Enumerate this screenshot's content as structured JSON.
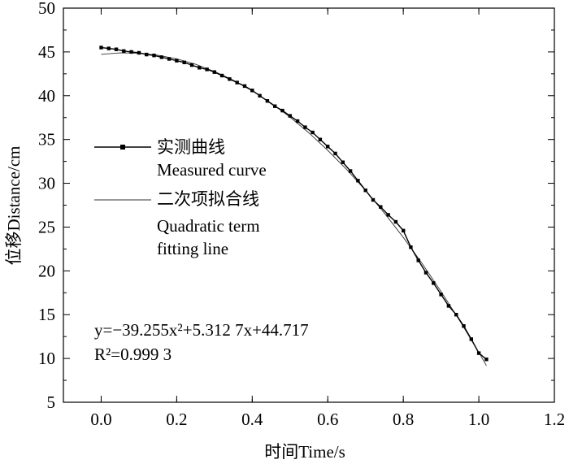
{
  "chart_data": {
    "type": "line",
    "xlabel": "时间Time/s",
    "ylabel": "位移Distance/cm",
    "xlim": [
      -0.1,
      1.2
    ],
    "ylim": [
      5,
      50
    ],
    "xticks": [
      0.0,
      0.2,
      0.4,
      0.6,
      0.8,
      1.0,
      1.2
    ],
    "xtick_labels": [
      "0.0",
      "0.2",
      "0.4",
      "0.6",
      "0.8",
      "1.0",
      "1.2"
    ],
    "yticks": [
      5,
      10,
      15,
      20,
      25,
      30,
      35,
      40,
      45,
      50
    ],
    "ytick_labels": [
      "5",
      "10",
      "15",
      "20",
      "25",
      "30",
      "35",
      "40",
      "45",
      "50"
    ],
    "grid": false,
    "legend_position": "middle-left",
    "legend": {
      "measured_cn": "实测曲线",
      "measured_en": "Measured curve",
      "fit_cn": "二次项拟合线",
      "fit_en_line1": "Quadratic term",
      "fit_en_line2": "fitting line"
    },
    "annotation": {
      "equation_line1": "y=−39.255x²+5.312 7x+44.717",
      "equation_line2": "R²=0.999 3"
    },
    "series": [
      {
        "name": "实测曲线 Measured curve",
        "style": "line-with-square-markers",
        "x": [
          0.0,
          0.02,
          0.04,
          0.06,
          0.08,
          0.1,
          0.12,
          0.14,
          0.16,
          0.18,
          0.2,
          0.22,
          0.24,
          0.26,
          0.28,
          0.3,
          0.32,
          0.34,
          0.36,
          0.38,
          0.4,
          0.42,
          0.44,
          0.46,
          0.48,
          0.5,
          0.52,
          0.54,
          0.56,
          0.58,
          0.6,
          0.62,
          0.64,
          0.66,
          0.68,
          0.7,
          0.72,
          0.74,
          0.76,
          0.78,
          0.8,
          0.82,
          0.84,
          0.86,
          0.88,
          0.9,
          0.92,
          0.94,
          0.96,
          0.98,
          1.0,
          1.02
        ],
        "y": [
          45.5,
          45.4,
          45.3,
          45.1,
          45.0,
          44.9,
          44.7,
          44.6,
          44.4,
          44.2,
          44.0,
          43.8,
          43.5,
          43.2,
          43.0,
          42.7,
          42.3,
          41.9,
          41.5,
          41.1,
          40.6,
          40.0,
          39.4,
          38.8,
          38.3,
          37.7,
          37.1,
          36.4,
          35.8,
          35.0,
          34.2,
          33.4,
          32.4,
          31.4,
          30.3,
          29.2,
          28.1,
          27.3,
          26.4,
          25.6,
          24.6,
          22.7,
          21.2,
          19.8,
          18.6,
          17.3,
          16.0,
          15.0,
          13.7,
          12.2,
          10.6,
          9.9
        ]
      },
      {
        "name": "二次项拟合线 Quadratic term fitting line",
        "style": "thin-line",
        "x": [
          0.0,
          0.05,
          0.1,
          0.15,
          0.2,
          0.25,
          0.3,
          0.35,
          0.4,
          0.45,
          0.5,
          0.55,
          0.6,
          0.65,
          0.7,
          0.75,
          0.8,
          0.85,
          0.9,
          0.95,
          1.0,
          1.02
        ],
        "y": [
          44.717,
          44.885,
          44.856,
          44.63,
          44.207,
          43.588,
          42.776,
          41.761,
          40.554,
          39.154,
          37.556,
          35.761,
          33.764,
          31.571,
          29.185,
          26.6,
          23.815,
          20.829,
          17.647,
          14.268,
          10.685,
          9.187
        ]
      }
    ]
  }
}
